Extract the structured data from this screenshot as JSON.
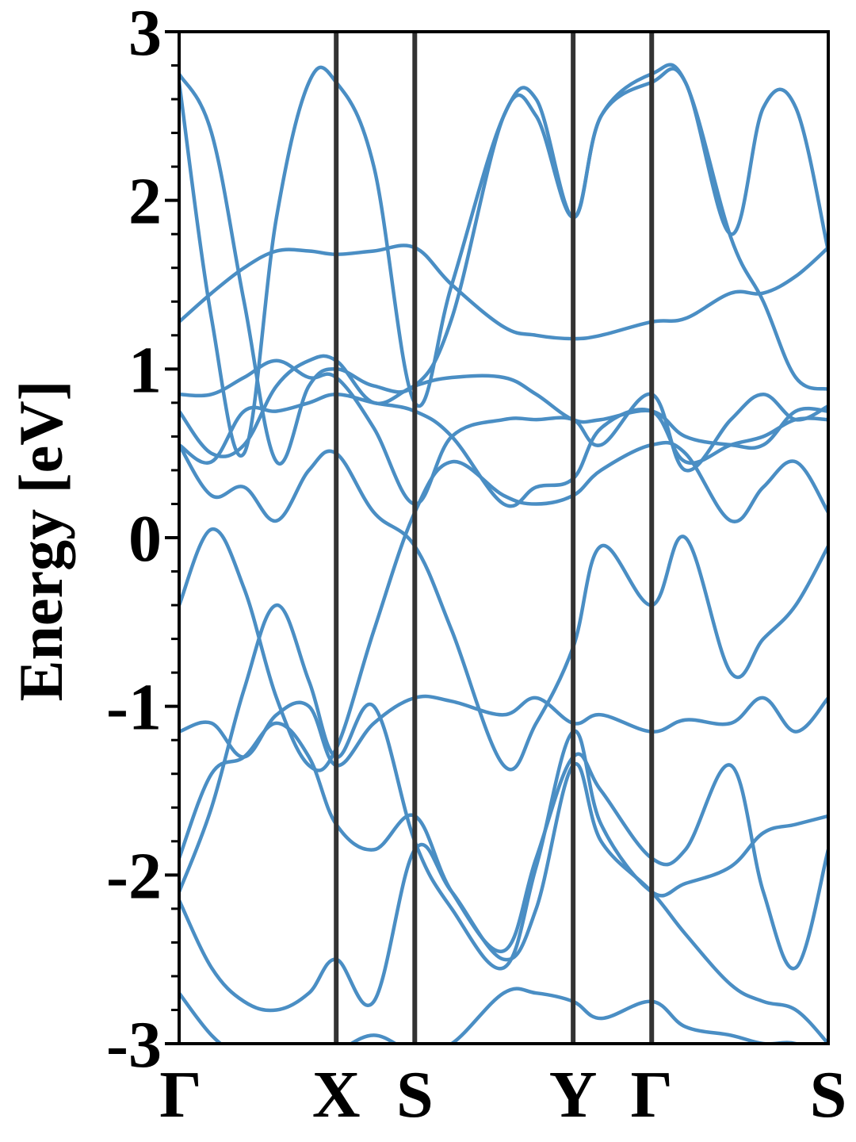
{
  "chart_data": {
    "type": "line",
    "title": "",
    "xlabel": "",
    "ylabel": "Energy [eV]",
    "ylim": [
      -3,
      3
    ],
    "yticks": [
      "-3",
      "-2",
      "-1",
      "0",
      "1",
      "2",
      "3"
    ],
    "kpath": {
      "labels": [
        "Γ",
        "X",
        "S",
        "Y",
        "Γ",
        "S"
      ],
      "positions": [
        0,
        0.242,
        0.363,
        0.607,
        0.728,
        1.0
      ]
    },
    "line_color": "#4a8ec4",
    "divider_color": "#333333",
    "grid": false,
    "legend": "none",
    "x": [
      0,
      0.05,
      0.1,
      0.15,
      0.2,
      0.242,
      0.3,
      0.363,
      0.42,
      0.5,
      0.55,
      0.607,
      0.65,
      0.728,
      0.78,
      0.85,
      0.9,
      0.95,
      1.0
    ],
    "series": [
      {
        "values": [
          -0.4,
          0.05,
          -0.3,
          -0.95,
          -1.35,
          -1.25,
          -0.55,
          0.15,
          0.45,
          0.25,
          0.2,
          0.25,
          0.4,
          0.55,
          0.5,
          0.1,
          0.3,
          0.45,
          0.15
        ]
      },
      {
        "values": [
          0.55,
          0.25,
          0.3,
          0.1,
          0.4,
          0.5,
          0.15,
          -0.05,
          -0.55,
          -1.35,
          -1.1,
          -0.65,
          -0.05,
          -0.4,
          0.0,
          -0.8,
          -0.6,
          -0.4,
          -0.05
        ]
      },
      {
        "values": [
          -1.15,
          -1.1,
          -1.3,
          -1.05,
          -1.0,
          -1.35,
          -1.1,
          -0.95,
          -0.97,
          -1.05,
          -0.95,
          -1.1,
          -1.05,
          -1.15,
          -1.08,
          -1.1,
          -0.95,
          -1.15,
          -0.95
        ]
      },
      {
        "values": [
          -1.9,
          -1.4,
          -1.3,
          -1.1,
          -1.3,
          -1.7,
          -1.85,
          -1.65,
          -2.1,
          -2.45,
          -1.9,
          -1.3,
          -1.5,
          -1.9,
          -1.85,
          -1.35,
          -2.1,
          -2.55,
          -1.85
        ]
      },
      {
        "values": [
          -2.1,
          -1.6,
          -0.9,
          -0.4,
          -0.85,
          -1.3,
          -1.0,
          -1.8,
          -2.2,
          -2.55,
          -1.95,
          -1.15,
          -1.7,
          -2.1,
          -2.05,
          -1.95,
          -1.75,
          -1.7,
          -1.65
        ]
      },
      {
        "values": [
          -2.15,
          -2.55,
          -2.75,
          -2.8,
          -2.7,
          -2.5,
          -2.75,
          -1.85,
          -2.1,
          -2.5,
          -2.2,
          -1.35,
          -1.8,
          -2.1,
          -2.35,
          -2.65,
          -2.75,
          -2.8,
          -3.0
        ]
      },
      {
        "values": [
          -2.7,
          -2.95,
          -3.1,
          -3.2,
          -3.1,
          -3.05,
          -2.95,
          -3.05,
          -3.0,
          -2.7,
          -2.7,
          -2.75,
          -2.85,
          -2.75,
          -2.9,
          -2.95,
          -3.0,
          -3.0,
          -3.1
        ]
      },
      {
        "values": [
          0.75,
          0.5,
          0.55,
          0.9,
          1.05,
          1.05,
          0.8,
          0.9,
          0.95,
          0.95,
          0.85,
          0.7,
          0.7,
          0.75,
          0.6,
          0.55,
          0.55,
          0.75,
          0.75
        ]
      },
      {
        "values": [
          0.85,
          0.85,
          0.95,
          1.05,
          0.95,
          0.95,
          0.65,
          0.2,
          0.6,
          0.7,
          0.7,
          0.7,
          0.55,
          0.85,
          0.4,
          0.7,
          0.85,
          0.7,
          0.78
        ]
      },
      {
        "values": [
          0.55,
          0.45,
          0.75,
          0.75,
          0.8,
          0.85,
          0.8,
          0.75,
          0.6,
          0.2,
          0.3,
          0.35,
          0.65,
          0.75,
          0.45,
          0.55,
          0.6,
          0.7,
          0.7
        ]
      },
      {
        "values": [
          1.28,
          1.45,
          1.6,
          1.7,
          1.7,
          1.68,
          1.7,
          1.72,
          1.5,
          1.25,
          1.2,
          1.18,
          1.2,
          1.28,
          1.3,
          1.45,
          1.45,
          1.55,
          1.72
        ]
      },
      {
        "values": [
          2.75,
          2.4,
          1.4,
          0.45,
          0.9,
          1.0,
          0.9,
          0.9,
          1.3,
          2.5,
          2.5,
          1.9,
          2.5,
          2.75,
          2.7,
          1.78,
          1.4,
          0.95,
          0.88
        ]
      },
      {
        "values": [
          2.7,
          1.3,
          0.5,
          1.9,
          2.7,
          2.7,
          2.2,
          0.8,
          1.5,
          2.5,
          2.6,
          1.9,
          2.5,
          2.7,
          2.7,
          1.8,
          2.55,
          2.55,
          1.7
        ]
      }
    ]
  }
}
